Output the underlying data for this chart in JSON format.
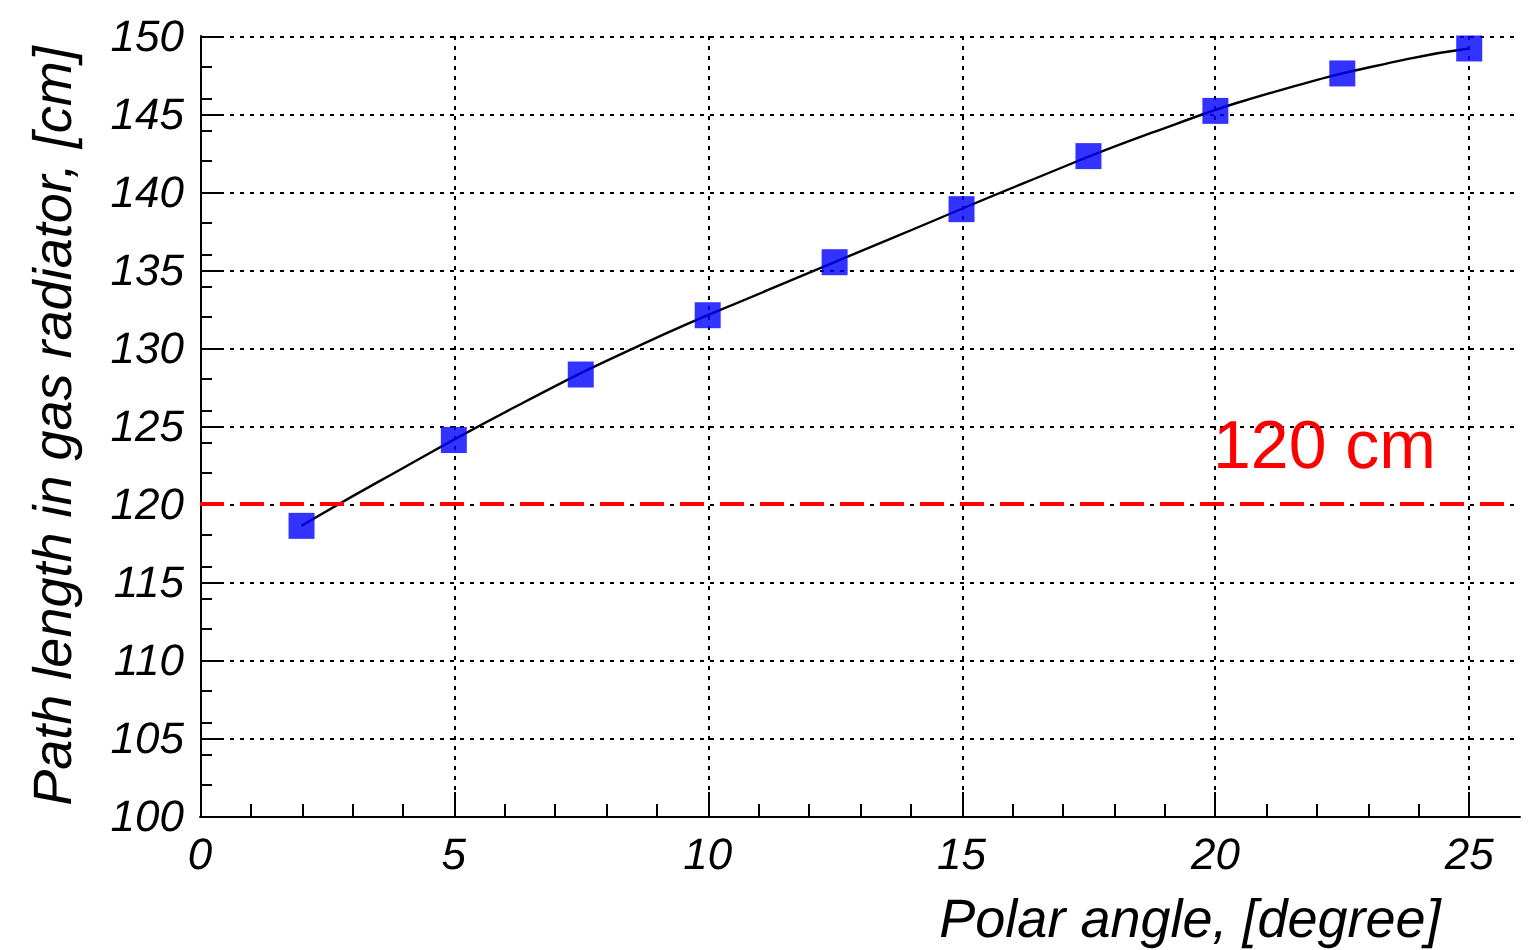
{
  "chart_data": {
    "type": "scatter",
    "xlabel": "Polar angle, [degree]",
    "ylabel": "Path length in gas radiator, [cm]",
    "xlim": [
      0,
      26
    ],
    "xticks": [
      0,
      5,
      10,
      15,
      20,
      25
    ],
    "ylim": [
      100,
      150
    ],
    "yticks": [
      100,
      105,
      110,
      115,
      120,
      125,
      130,
      135,
      140,
      145,
      150
    ],
    "grid": true,
    "marker": "square",
    "series": [
      {
        "type": "scatter",
        "color": "#0000ff",
        "x": [
          2,
          5,
          7.5,
          10,
          12.5,
          15,
          17.5,
          20,
          22.5,
          25
        ],
        "values": [
          118.6,
          124.1,
          128.3,
          132.1,
          135.5,
          138.9,
          142.3,
          145.2,
          147.6,
          149.2
        ]
      },
      {
        "type": "line",
        "color": "#000000",
        "marker": "none",
        "x": [
          2,
          3.5,
          6.25,
          8.75,
          11.25,
          13.75,
          16.25,
          18.75,
          21.25,
          23.75,
          25
        ],
        "values": [
          118.6,
          121.4,
          126.3,
          130.3,
          133.8,
          137.2,
          140.6,
          143.8,
          146.5,
          148.5,
          149.2
        ]
      }
    ],
    "ref_lines": [
      {
        "axis": "y",
        "value": 120,
        "label": "120 cm",
        "color": "#ff0000",
        "line_style": "dashed"
      }
    ]
  }
}
